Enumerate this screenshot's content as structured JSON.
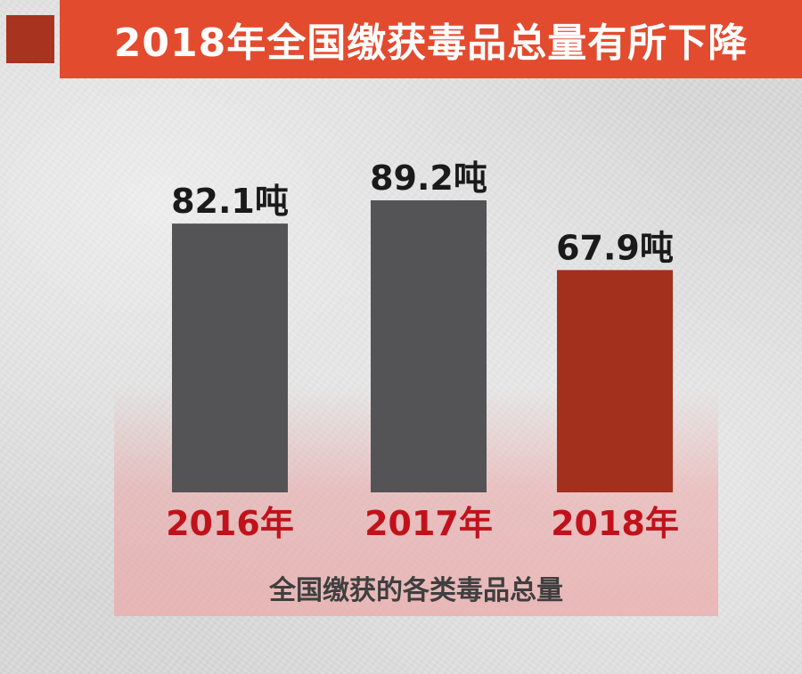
{
  "title": "2018年全国缴获毒品总量有所下降",
  "colors": {
    "title_bar": "#e34b2f",
    "title_square": "#a8331f",
    "bar_default": "#545456",
    "bar_highlight": "#a3301c",
    "category_label": "#c1121b"
  },
  "chart_data": {
    "type": "bar",
    "title": "2018年全国缴获毒品总量有所下降",
    "caption": "全国缴获的各类毒品总量",
    "unit": "吨",
    "categories": [
      "2016年",
      "2017年",
      "2018年"
    ],
    "values": [
      82.1,
      89.2,
      67.9
    ],
    "value_labels": [
      "82.1吨",
      "89.2吨",
      "67.9吨"
    ],
    "highlight_index": 2,
    "ylim": [
      0,
      89.2
    ],
    "grid": false,
    "legend": "none"
  }
}
